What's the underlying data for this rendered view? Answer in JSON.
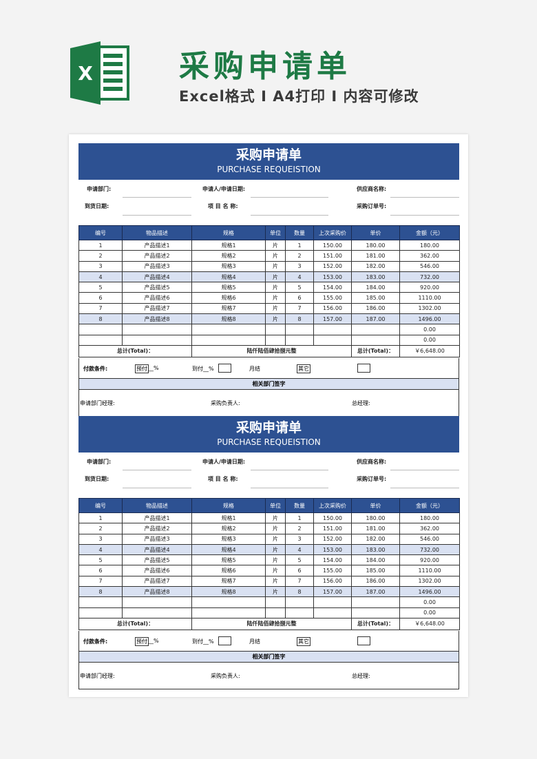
{
  "banner": {
    "title": "采购申请单",
    "subtitle": "Excel格式 I A4打印 I 内容可修改",
    "logo_letter": "X",
    "brand_color": "#1e7a45"
  },
  "form": {
    "title": "采购申请单",
    "subtitle": "PURCHASE REQUEISTION",
    "header_color": "#2d5192",
    "fields": {
      "dept": "申请部门:",
      "applicant": "申请人/申请日期:",
      "supplier": "供应商名称:",
      "arrival": "到货日期:",
      "project": "项 目 名 称:",
      "order_no": "采购订单号:"
    },
    "columns": [
      "编号",
      "物品描述",
      "规格",
      "单位",
      "数量",
      "上次采购价",
      "单价",
      "金额（元）"
    ],
    "rows": [
      [
        "1",
        "产品描述1",
        "规格1",
        "片",
        "1",
        "150.00",
        "180.00",
        "180.00"
      ],
      [
        "2",
        "产品描述2",
        "规格2",
        "片",
        "2",
        "151.00",
        "181.00",
        "362.00"
      ],
      [
        "3",
        "产品描述3",
        "规格3",
        "片",
        "3",
        "152.00",
        "182.00",
        "546.00"
      ],
      [
        "4",
        "产品描述4",
        "规格4",
        "片",
        "4",
        "153.00",
        "183.00",
        "732.00"
      ],
      [
        "5",
        "产品描述5",
        "规格5",
        "片",
        "5",
        "154.00",
        "184.00",
        "920.00"
      ],
      [
        "6",
        "产品描述6",
        "规格6",
        "片",
        "6",
        "155.00",
        "185.00",
        "1110.00"
      ],
      [
        "7",
        "产品描述7",
        "规格7",
        "片",
        "7",
        "156.00",
        "186.00",
        "1302.00"
      ],
      [
        "8",
        "产品描述8",
        "规格8",
        "片",
        "8",
        "157.00",
        "187.00",
        "1496.00"
      ],
      [
        "",
        "",
        "",
        "",
        "",
        "",
        "",
        "0.00"
      ],
      [
        "",
        "",
        "",
        "",
        "",
        "",
        "",
        "0.00"
      ]
    ],
    "highlight_rows": [
      3,
      7
    ],
    "total_label": "总计(Total)：",
    "total_words": "陆仟陆佰肆拾捌元整",
    "total_label2": "总计(Total)：",
    "total_value": "￥6,648.00",
    "payment": {
      "label": "付款条件:",
      "prepay": "预付",
      "pct1": "__%",
      "onarrival": "到付__%",
      "monthly": "月结",
      "other": "其它"
    },
    "sign_header": "相关部门签字",
    "signatures": {
      "dept_manager": "申请部门经理:",
      "purchasing": "采购负责人:",
      "gm": "总经理:"
    }
  },
  "form_count": 2
}
